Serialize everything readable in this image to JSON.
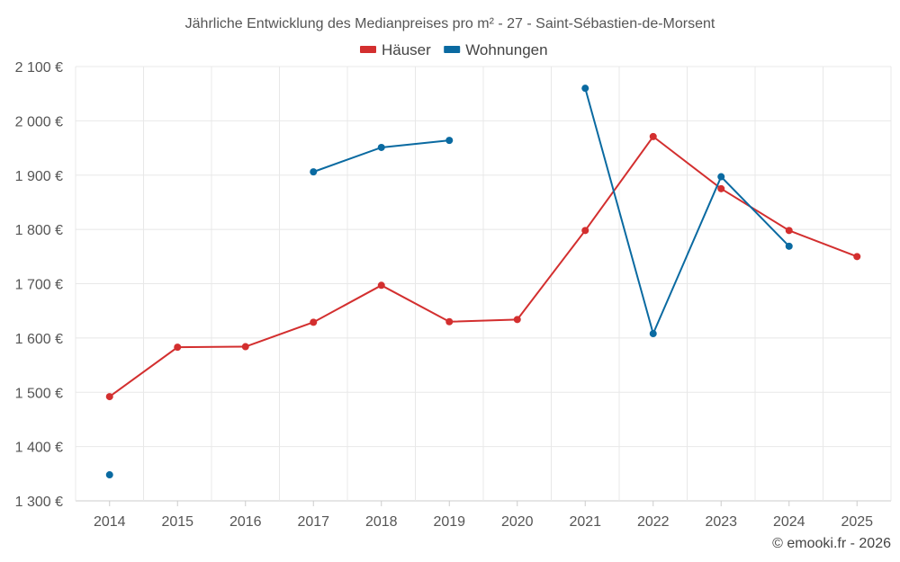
{
  "chart_data": {
    "type": "line",
    "title": "Jährliche Entwicklung des Medianpreises pro m² - 27 - Saint-Sébastien-de-Morsent",
    "categories": [
      "2014",
      "2015",
      "2016",
      "2017",
      "2018",
      "2019",
      "2020",
      "2021",
      "2022",
      "2023",
      "2024",
      "2025"
    ],
    "ylim": [
      1300,
      2100
    ],
    "yticks": [
      1300,
      1400,
      1500,
      1600,
      1700,
      1800,
      1900,
      2000,
      2100
    ],
    "ytick_labels": [
      "1 300 €",
      "1 400 €",
      "1 500 €",
      "1 600 €",
      "1 700 €",
      "1 800 €",
      "1 900 €",
      "2 000 €",
      "2 100 €"
    ],
    "grid": true,
    "legend_position": "top-center",
    "series": [
      {
        "name": "Häuser",
        "color": "#d32f2f",
        "values": [
          1492,
          1583,
          1584,
          1629,
          1697,
          1630,
          1634,
          1798,
          1971,
          1875,
          1798,
          1750
        ]
      },
      {
        "name": "Wohnungen",
        "color": "#0a6aa1",
        "values": [
          1348,
          null,
          null,
          1906,
          1951,
          1964,
          null,
          2060,
          1608,
          1897,
          1769,
          null
        ]
      }
    ],
    "credit": "© emooki.fr - 2026"
  }
}
